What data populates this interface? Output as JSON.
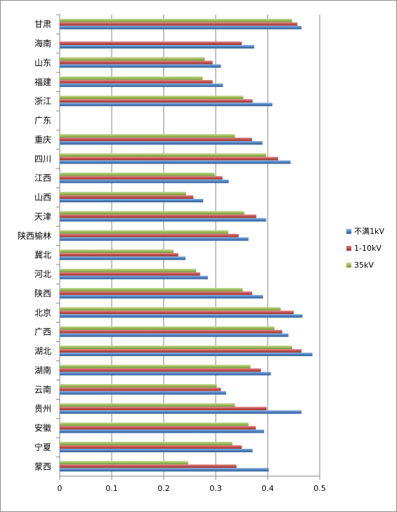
{
  "chart_data": {
    "type": "bar",
    "orientation": "horizontal",
    "categories": [
      "甘肃",
      "海南",
      "山东",
      "福建",
      "浙江",
      "广东",
      "重庆",
      "四川",
      "江西",
      "山西",
      "天津",
      "陕西榆林",
      "冀北",
      "河北",
      "陕西",
      "北京",
      "广西",
      "湖北",
      "湖南",
      "云南",
      "贵州",
      "安徽",
      "宁夏",
      "蒙西"
    ],
    "series": [
      {
        "name": "35kV",
        "color": "#9bbb59",
        "values": [
          0.447,
          null,
          0.279,
          0.275,
          0.353,
          null,
          0.337,
          0.397,
          0.298,
          0.243,
          0.355,
          0.324,
          0.219,
          0.262,
          0.352,
          0.425,
          0.413,
          0.447,
          0.367,
          0.302,
          0.337,
          0.363,
          0.332,
          0.247
        ]
      },
      {
        "name": "1-10kV",
        "color": "#c0504d",
        "values": [
          0.457,
          0.35,
          0.294,
          0.294,
          0.371,
          null,
          0.37,
          0.42,
          0.313,
          0.257,
          0.378,
          0.344,
          0.228,
          0.27,
          0.37,
          0.45,
          0.428,
          0.465,
          0.387,
          0.31,
          0.398,
          0.377,
          0.35,
          0.34
        ]
      },
      {
        "name": "不满1kV",
        "color": "#4f81bd",
        "values": [
          0.465,
          0.374,
          0.31,
          0.314,
          0.409,
          null,
          0.39,
          0.444,
          0.325,
          0.276,
          0.397,
          0.363,
          0.242,
          0.285,
          0.391,
          0.467,
          0.44,
          0.486,
          0.406,
          0.32,
          0.465,
          0.393,
          0.371,
          0.402
        ]
      }
    ],
    "xlim": [
      0,
      0.5
    ],
    "xticks": [
      "0",
      "0.1",
      "0.2",
      "0.3",
      "0.4",
      "0.5"
    ],
    "legend_position": "right",
    "grid": true,
    "title": "",
    "xlabel": "",
    "ylabel": ""
  }
}
